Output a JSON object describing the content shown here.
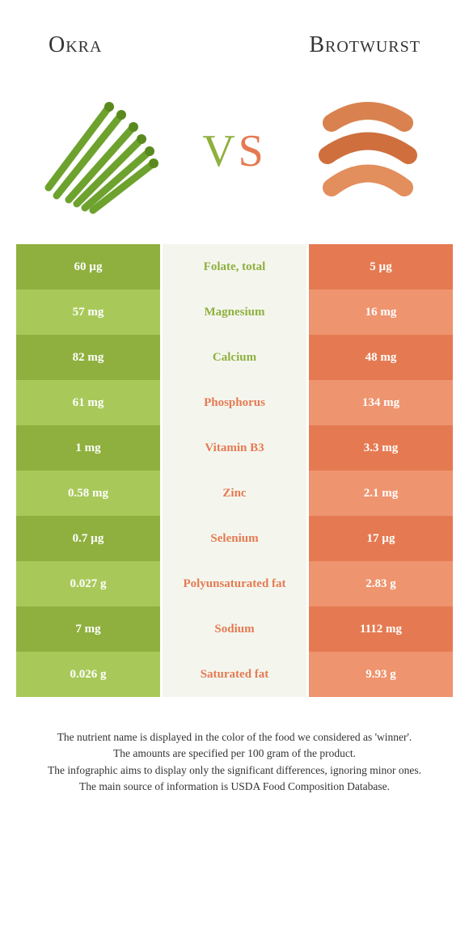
{
  "header": {
    "left_title": "Okra",
    "right_title": "Brotwurst"
  },
  "vs": {
    "v": "V",
    "s": "S"
  },
  "colors": {
    "okra_dark": "#8fb03e",
    "okra_light": "#a8c95a",
    "brot_dark": "#e57a52",
    "brot_light": "#ee946f",
    "mid_bg": "#f4f6ee",
    "okra_text": "#8fb03e",
    "brot_text": "#e57a52",
    "sausage1": "#d9824f",
    "sausage2": "#cf6f3e",
    "sausage3": "#e38e5d"
  },
  "rows": [
    {
      "left": "60 µg",
      "label": "Folate, total",
      "right": "5 µg",
      "winner": "okra"
    },
    {
      "left": "57 mg",
      "label": "Magnesium",
      "right": "16 mg",
      "winner": "okra"
    },
    {
      "left": "82 mg",
      "label": "Calcium",
      "right": "48 mg",
      "winner": "okra"
    },
    {
      "left": "61 mg",
      "label": "Phosphorus",
      "right": "134 mg",
      "winner": "brot"
    },
    {
      "left": "1 mg",
      "label": "Vitamin B3",
      "right": "3.3 mg",
      "winner": "brot"
    },
    {
      "left": "0.58 mg",
      "label": "Zinc",
      "right": "2.1 mg",
      "winner": "brot"
    },
    {
      "left": "0.7 µg",
      "label": "Selenium",
      "right": "17 µg",
      "winner": "brot"
    },
    {
      "left": "0.027 g",
      "label": "Polyunsaturated fat",
      "right": "2.83 g",
      "winner": "brot"
    },
    {
      "left": "7 mg",
      "label": "Sodium",
      "right": "1112 mg",
      "winner": "brot"
    },
    {
      "left": "0.026 g",
      "label": "Saturated fat",
      "right": "9.93 g",
      "winner": "brot"
    }
  ],
  "footer": {
    "l1": "The nutrient name is displayed in the color of the food we considered as 'winner'.",
    "l2": "The amounts are specified per 100 gram of the product.",
    "l3": "The infographic aims to display only the significant differences, ignoring minor ones.",
    "l4": "The main source of information is USDA Food Composition Database."
  }
}
